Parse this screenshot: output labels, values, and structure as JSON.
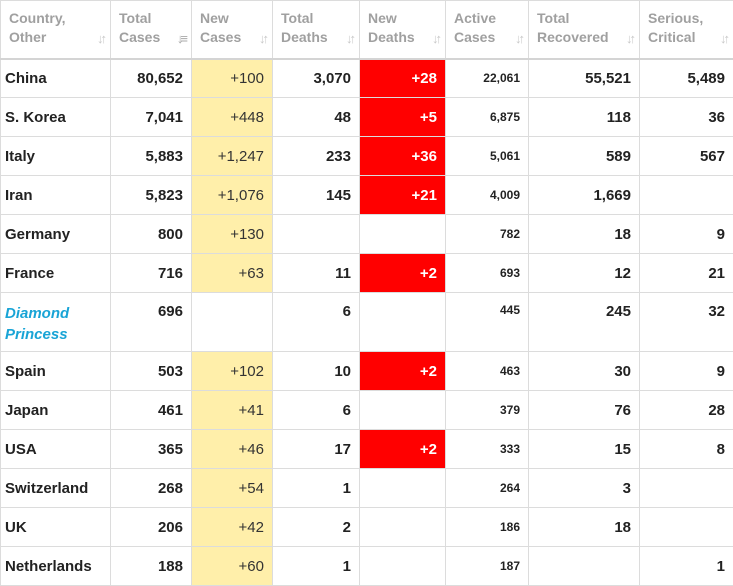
{
  "headers": [
    {
      "line1": "Country,",
      "line2": "Other",
      "icon": "sort-icon",
      "active": false
    },
    {
      "line1": "Total",
      "line2": "Cases",
      "icon": "sort-desc-icon",
      "active": true
    },
    {
      "line1": "New",
      "line2": "Cases",
      "icon": "sort-icon",
      "active": false
    },
    {
      "line1": "Total",
      "line2": "Deaths",
      "icon": "sort-icon",
      "active": false
    },
    {
      "line1": "New",
      "line2": "Deaths",
      "icon": "sort-icon",
      "active": false
    },
    {
      "line1": "Active",
      "line2": "Cases",
      "icon": "sort-icon",
      "active": false
    },
    {
      "line1": "Total",
      "line2": "Recovered",
      "icon": "sort-icon",
      "active": false
    },
    {
      "line1": "Serious,",
      "line2": "Critical",
      "icon": "sort-icon",
      "active": false
    }
  ],
  "sort_glyphs": {
    "sort-icon": "↓↑",
    "sort-desc-icon": "↓≡"
  },
  "colors": {
    "new_cases_bg": "#ffefaa",
    "new_deaths_bg": "#ff0000",
    "link": "#19a4d6",
    "header_text": "#a0a0a0"
  },
  "rows": [
    {
      "country": "China",
      "link": false,
      "total_cases": "80,652",
      "new_cases": "+100",
      "total_deaths": "3,070",
      "new_deaths": "+28",
      "active_cases": "22,061",
      "total_recovered": "55,521",
      "serious_critical": "5,489"
    },
    {
      "country": "S. Korea",
      "link": false,
      "total_cases": "7,041",
      "new_cases": "+448",
      "total_deaths": "48",
      "new_deaths": "+5",
      "active_cases": "6,875",
      "total_recovered": "118",
      "serious_critical": "36"
    },
    {
      "country": "Italy",
      "link": false,
      "total_cases": "5,883",
      "new_cases": "+1,247",
      "total_deaths": "233",
      "new_deaths": "+36",
      "active_cases": "5,061",
      "total_recovered": "589",
      "serious_critical": "567"
    },
    {
      "country": "Iran",
      "link": false,
      "total_cases": "5,823",
      "new_cases": "+1,076",
      "total_deaths": "145",
      "new_deaths": "+21",
      "active_cases": "4,009",
      "total_recovered": "1,669",
      "serious_critical": ""
    },
    {
      "country": "Germany",
      "link": false,
      "total_cases": "800",
      "new_cases": "+130",
      "total_deaths": "",
      "new_deaths": "",
      "active_cases": "782",
      "total_recovered": "18",
      "serious_critical": "9"
    },
    {
      "country": "France",
      "link": false,
      "total_cases": "716",
      "new_cases": "+63",
      "total_deaths": "11",
      "new_deaths": "+2",
      "active_cases": "693",
      "total_recovered": "12",
      "serious_critical": "21"
    },
    {
      "country": "Diamond Princess",
      "link": true,
      "total_cases": "696",
      "new_cases": "",
      "total_deaths": "6",
      "new_deaths": "",
      "active_cases": "445",
      "total_recovered": "245",
      "serious_critical": "32"
    },
    {
      "country": "Spain",
      "link": false,
      "total_cases": "503",
      "new_cases": "+102",
      "total_deaths": "10",
      "new_deaths": "+2",
      "active_cases": "463",
      "total_recovered": "30",
      "serious_critical": "9"
    },
    {
      "country": "Japan",
      "link": false,
      "total_cases": "461",
      "new_cases": "+41",
      "total_deaths": "6",
      "new_deaths": "",
      "active_cases": "379",
      "total_recovered": "76",
      "serious_critical": "28"
    },
    {
      "country": "USA",
      "link": false,
      "total_cases": "365",
      "new_cases": "+46",
      "total_deaths": "17",
      "new_deaths": "+2",
      "active_cases": "333",
      "total_recovered": "15",
      "serious_critical": "8"
    },
    {
      "country": "Switzerland",
      "link": false,
      "total_cases": "268",
      "new_cases": "+54",
      "total_deaths": "1",
      "new_deaths": "",
      "active_cases": "264",
      "total_recovered": "3",
      "serious_critical": ""
    },
    {
      "country": "UK",
      "link": false,
      "total_cases": "206",
      "new_cases": "+42",
      "total_deaths": "2",
      "new_deaths": "",
      "active_cases": "186",
      "total_recovered": "18",
      "serious_critical": ""
    },
    {
      "country": "Netherlands",
      "link": false,
      "total_cases": "188",
      "new_cases": "+60",
      "total_deaths": "1",
      "new_deaths": "",
      "active_cases": "187",
      "total_recovered": "",
      "serious_critical": "1"
    }
  ]
}
